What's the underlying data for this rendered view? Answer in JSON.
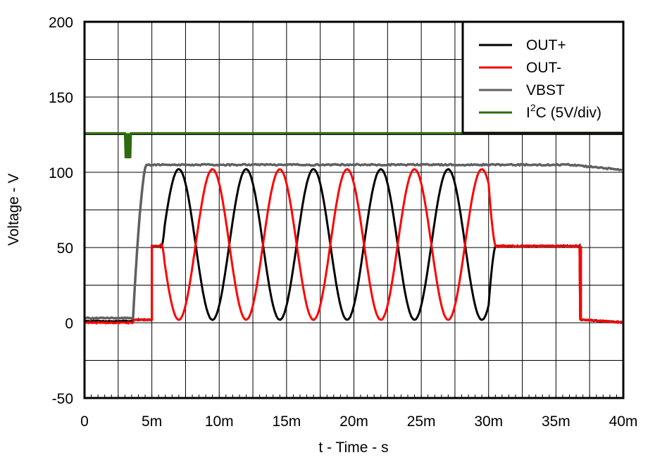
{
  "chart_data": {
    "type": "line",
    "title": "",
    "xlabel": "t - Time - s",
    "ylabel": "Voltage - V",
    "xlim": [
      0,
      0.04
    ],
    "ylim": [
      -50,
      200
    ],
    "grid": true,
    "legend_position": "upper-right",
    "x_ticks": [
      "0",
      "5m",
      "10m",
      "15m",
      "20m",
      "25m",
      "30m",
      "35m",
      "40m"
    ],
    "y_ticks": [
      "200",
      "150",
      "100",
      "50",
      "0",
      "-50"
    ],
    "legend": [
      "OUT+",
      "OUT-",
      "VBST",
      "I2C (5V/div)"
    ],
    "series": [
      {
        "name": "OUT+",
        "color": "#000000",
        "description": "~2V until 5ms; steps to ~51V at 5ms; sine 2-102V (200Hz, peaks at 7,12,17,22,27ms) until ~30.5ms; holds ~51V until ~36.8ms; drops to ~0V",
        "x_ms": [
          0,
          3.6,
          4.9,
          5.0,
          5.6,
          7.0,
          9.5,
          12.0,
          14.5,
          17.0,
          19.5,
          22.0,
          24.5,
          27.0,
          29.5,
          30.5,
          36.8,
          36.9,
          40
        ],
        "y_v": [
          1,
          2,
          2,
          51,
          51,
          102,
          2,
          102,
          2,
          102,
          2,
          102,
          2,
          102,
          2,
          51,
          51,
          2,
          0
        ]
      },
      {
        "name": "OUT-",
        "color": "#ff0000",
        "description": "~0V until 3.6ms, ~2V until 5ms; steps to ~51V; sine antiphase (peaks at 9.5,14.5,19.5,24.5,29.5ms) until ~30.5ms; holds ~51V until ~36.8ms; drops to ~0V",
        "x_ms": [
          0,
          3.6,
          4.9,
          5.0,
          5.6,
          7.0,
          9.5,
          12.0,
          14.5,
          17.0,
          19.5,
          22.0,
          24.5,
          27.0,
          29.5,
          30.5,
          36.8,
          36.9,
          40
        ],
        "y_v": [
          0,
          2,
          2,
          51,
          51,
          2,
          102,
          2,
          102,
          2,
          102,
          2,
          102,
          2,
          102,
          51,
          51,
          2,
          0
        ]
      },
      {
        "name": "VBST",
        "color": "#606060",
        "x_ms": [
          0,
          3.6,
          4.5,
          4.7,
          30,
          36,
          38,
          40
        ],
        "y_v": [
          3,
          3,
          95,
          105,
          105,
          105,
          104,
          102
        ]
      },
      {
        "name": "I2C (5V/div)",
        "color": "#2e6b0f",
        "description": "constant level near 125V-scale with brief negative pulse at ~3.2ms",
        "x_ms": [
          0,
          3.0,
          3.05,
          3.4,
          3.45,
          40
        ],
        "y_v": [
          126,
          126,
          110,
          110,
          126,
          126
        ]
      }
    ]
  },
  "axes": {
    "xlabel": "t - Time - s",
    "ylabel": "Voltage - V",
    "x_ticks": [
      "0",
      "5m",
      "10m",
      "15m",
      "20m",
      "25m",
      "30m",
      "35m",
      "40m"
    ],
    "y_ticks": [
      "200",
      "150",
      "100",
      "50",
      "0",
      "-50"
    ]
  },
  "legend": {
    "items": [
      {
        "label": "OUT+",
        "color": "#000000"
      },
      {
        "label": "OUT-",
        "color": "#ff0000"
      },
      {
        "label": "VBST",
        "color": "#606060"
      },
      {
        "label_main": "I",
        "label_sup": "2",
        "label_rest": "C (5V/div)",
        "color": "#2e6b0f"
      }
    ]
  }
}
